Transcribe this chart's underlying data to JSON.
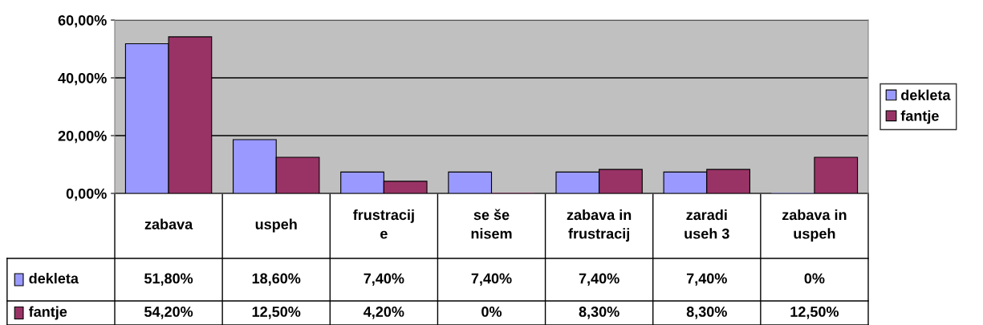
{
  "chart_data": {
    "type": "bar",
    "categories": [
      "zabava",
      "uspeh",
      "frustracij\ne",
      "se še\nnisem",
      "zabava in\nfrustracij",
      "zaradi\nuseh 3",
      "zabava in\nuspeh"
    ],
    "series": [
      {
        "name": "dekleta",
        "color": "#9999ff",
        "values": [
          51.8,
          18.6,
          7.4,
          7.4,
          7.4,
          7.4,
          0
        ],
        "value_labels": [
          "51,80%",
          "18,60%",
          "7,40%",
          "7,40%",
          "7,40%",
          "7,40%",
          "0%"
        ]
      },
      {
        "name": "fantje",
        "color": "#993366",
        "values": [
          54.2,
          12.5,
          4.2,
          0,
          8.3,
          8.3,
          12.5
        ],
        "value_labels": [
          "54,20%",
          "12,50%",
          "4,20%",
          "0%",
          "8,30%",
          "8,30%",
          "12,50%"
        ]
      }
    ],
    "ylim": [
      0,
      60
    ],
    "yticks": [
      {
        "value": 0,
        "label": "0,00%"
      },
      {
        "value": 20,
        "label": "20,00%"
      },
      {
        "value": 40,
        "label": "40,00%"
      },
      {
        "value": 60,
        "label": "60,00%"
      }
    ],
    "grid": "y",
    "legend": "right"
  }
}
